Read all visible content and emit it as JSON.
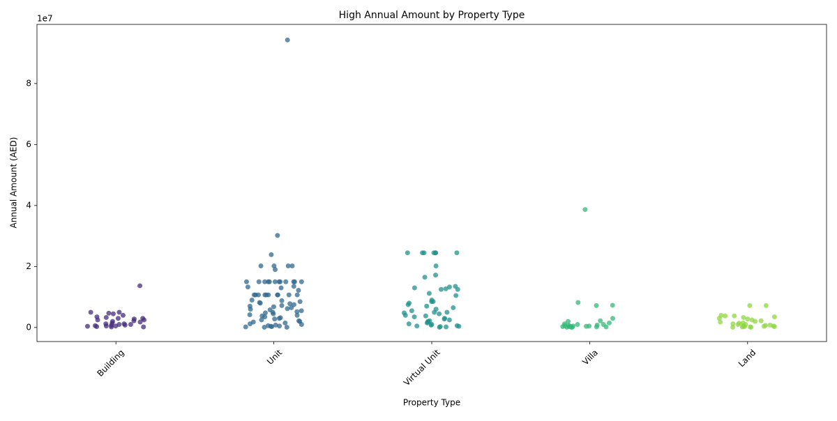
{
  "chart_data": {
    "type": "strip",
    "title": "High Annual Amount by Property Type",
    "x_label": "Property Type",
    "y_label": "Annual Amount (AED)",
    "y_offset_label": "1e7",
    "categories": [
      "Building",
      "Unit",
      "Virtual Unit",
      "Villa",
      "Land"
    ],
    "ylim": [
      -0.46,
      9.94
    ],
    "yticks": [
      0,
      2,
      4,
      6,
      8
    ],
    "groups": [
      {
        "color": "#472d7b",
        "values": [
          1.37,
          0.5,
          0.5,
          0.47,
          0.45,
          0.4,
          0.35,
          0.33,
          0.3,
          0.3,
          0.28,
          0.25,
          0.25,
          0.22,
          0.2,
          0.18,
          0.15,
          0.12,
          0.12,
          0.1,
          0.1,
          0.08,
          0.07,
          0.06,
          0.05,
          0.05,
          0.04,
          0.03,
          0.02,
          0.02
        ]
      },
      {
        "color": "#31688e",
        "values": [
          9.43,
          3.02,
          2.39,
          2.02,
          2.02,
          2.02,
          2.02,
          1.9,
          1.5,
          1.5,
          1.5,
          1.5,
          1.5,
          1.5,
          1.5,
          1.5,
          1.5,
          1.5,
          1.5,
          1.5,
          1.35,
          1.33,
          1.3,
          1.22,
          1.07,
          1.07,
          1.07,
          1.07,
          1.07,
          1.07,
          1.07,
          1.07,
          1.07,
          1.07,
          0.9,
          0.88,
          0.85,
          0.82,
          0.8,
          0.78,
          0.75,
          0.72,
          0.7,
          0.68,
          0.65,
          0.62,
          0.6,
          0.58,
          0.55,
          0.52,
          0.5,
          0.48,
          0.45,
          0.42,
          0.4,
          0.38,
          0.35,
          0.32,
          0.3,
          0.28,
          0.25,
          0.22,
          0.2,
          0.18,
          0.15,
          0.12,
          0.1,
          0.08,
          0.06,
          0.05,
          0.04,
          0.03,
          0.02,
          0.01,
          0.01
        ]
      },
      {
        "color": "#21918c",
        "values": [
          2.45,
          2.45,
          2.45,
          2.45,
          2.45,
          2.45,
          2.45,
          2.02,
          1.72,
          1.65,
          1.35,
          1.33,
          1.3,
          1.27,
          1.25,
          1.25,
          1.12,
          1.05,
          0.9,
          0.85,
          0.85,
          0.8,
          0.75,
          0.7,
          0.65,
          0.6,
          0.55,
          0.5,
          0.5,
          0.48,
          0.45,
          0.4,
          0.38,
          0.35,
          0.3,
          0.28,
          0.25,
          0.22,
          0.2,
          0.18,
          0.15,
          0.12,
          0.1,
          0.08,
          0.06,
          0.05,
          0.04,
          0.03,
          0.02,
          0.01
        ]
      },
      {
        "color": "#35b779",
        "values": [
          3.87,
          0.82,
          0.73,
          0.72,
          0.3,
          0.22,
          0.2,
          0.15,
          0.12,
          0.1,
          0.1,
          0.08,
          0.07,
          0.06,
          0.05,
          0.05,
          0.04,
          0.04,
          0.03,
          0.03,
          0.02,
          0.02,
          0.01,
          0.01,
          0.01
        ]
      },
      {
        "color": "#90d743",
        "values": [
          0.72,
          0.72,
          0.4,
          0.38,
          0.38,
          0.35,
          0.33,
          0.3,
          0.28,
          0.25,
          0.22,
          0.2,
          0.18,
          0.15,
          0.14,
          0.12,
          0.1,
          0.1,
          0.08,
          0.07,
          0.06,
          0.05,
          0.05,
          0.04,
          0.03,
          0.03,
          0.02,
          0.02,
          0.01,
          0.01
        ]
      }
    ]
  }
}
